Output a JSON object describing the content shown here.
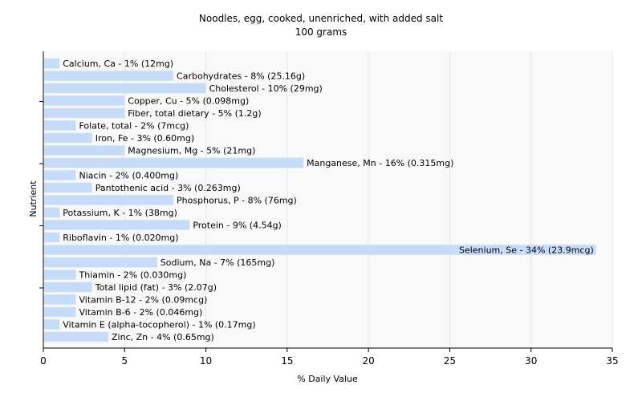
{
  "chart_data": {
    "type": "bar",
    "orientation": "horizontal",
    "title": "Noodles, egg, cooked, unenriched, with added salt",
    "subtitle": "100 grams",
    "xlabel": "% Daily Value",
    "ylabel": "Nutrient",
    "xlim": [
      0,
      35
    ],
    "xticks": [
      0,
      5,
      10,
      15,
      20,
      25,
      30,
      35
    ],
    "grid": true,
    "bar_color": "#c6dcf8",
    "categories": [
      "Calcium, Ca",
      "Carbohydrates",
      "Cholesterol",
      "Copper, Cu",
      "Fiber, total dietary",
      "Folate, total",
      "Iron, Fe",
      "Magnesium, Mg",
      "Manganese, Mn",
      "Niacin",
      "Pantothenic acid",
      "Phosphorus, P",
      "Potassium, K",
      "Protein",
      "Riboflavin",
      "Selenium, Se",
      "Sodium, Na",
      "Thiamin",
      "Total lipid (fat)",
      "Vitamin B-12",
      "Vitamin B-6",
      "Vitamin E (alpha-tocopherol)",
      "Zinc, Zn"
    ],
    "values": [
      1,
      8,
      10,
      5,
      5,
      2,
      3,
      5,
      16,
      2,
      3,
      8,
      1,
      9,
      1,
      34,
      7,
      2,
      3,
      2,
      2,
      1,
      4
    ],
    "labels": [
      "Calcium, Ca - 1% (12mg)",
      "Carbohydrates - 8% (25.16g)",
      "Cholesterol - 10% (29mg)",
      "Copper, Cu - 5% (0.098mg)",
      "Fiber, total dietary - 5% (1.2g)",
      "Folate, total - 2% (7mcg)",
      "Iron, Fe - 3% (0.60mg)",
      "Magnesium, Mg - 5% (21mg)",
      "Manganese, Mn - 16% (0.315mg)",
      "Niacin - 2% (0.400mg)",
      "Pantothenic acid - 3% (0.263mg)",
      "Phosphorus, P - 8% (76mg)",
      "Potassium, K - 1% (38mg)",
      "Protein - 9% (4.54g)",
      "Riboflavin - 1% (0.020mg)",
      "Selenium, Se - 34% (23.9mcg)",
      "Sodium, Na - 7% (165mg)",
      "Thiamin - 2% (0.030mg)",
      "Total lipid (fat) - 3% (2.07g)",
      "Vitamin B-12 - 2% (0.09mcg)",
      "Vitamin B-6 - 2% (0.046mg)",
      "Vitamin E (alpha-tocopherol) - 1% (0.17mg)",
      "Zinc, Zn - 4% (0.65mg)"
    ]
  }
}
